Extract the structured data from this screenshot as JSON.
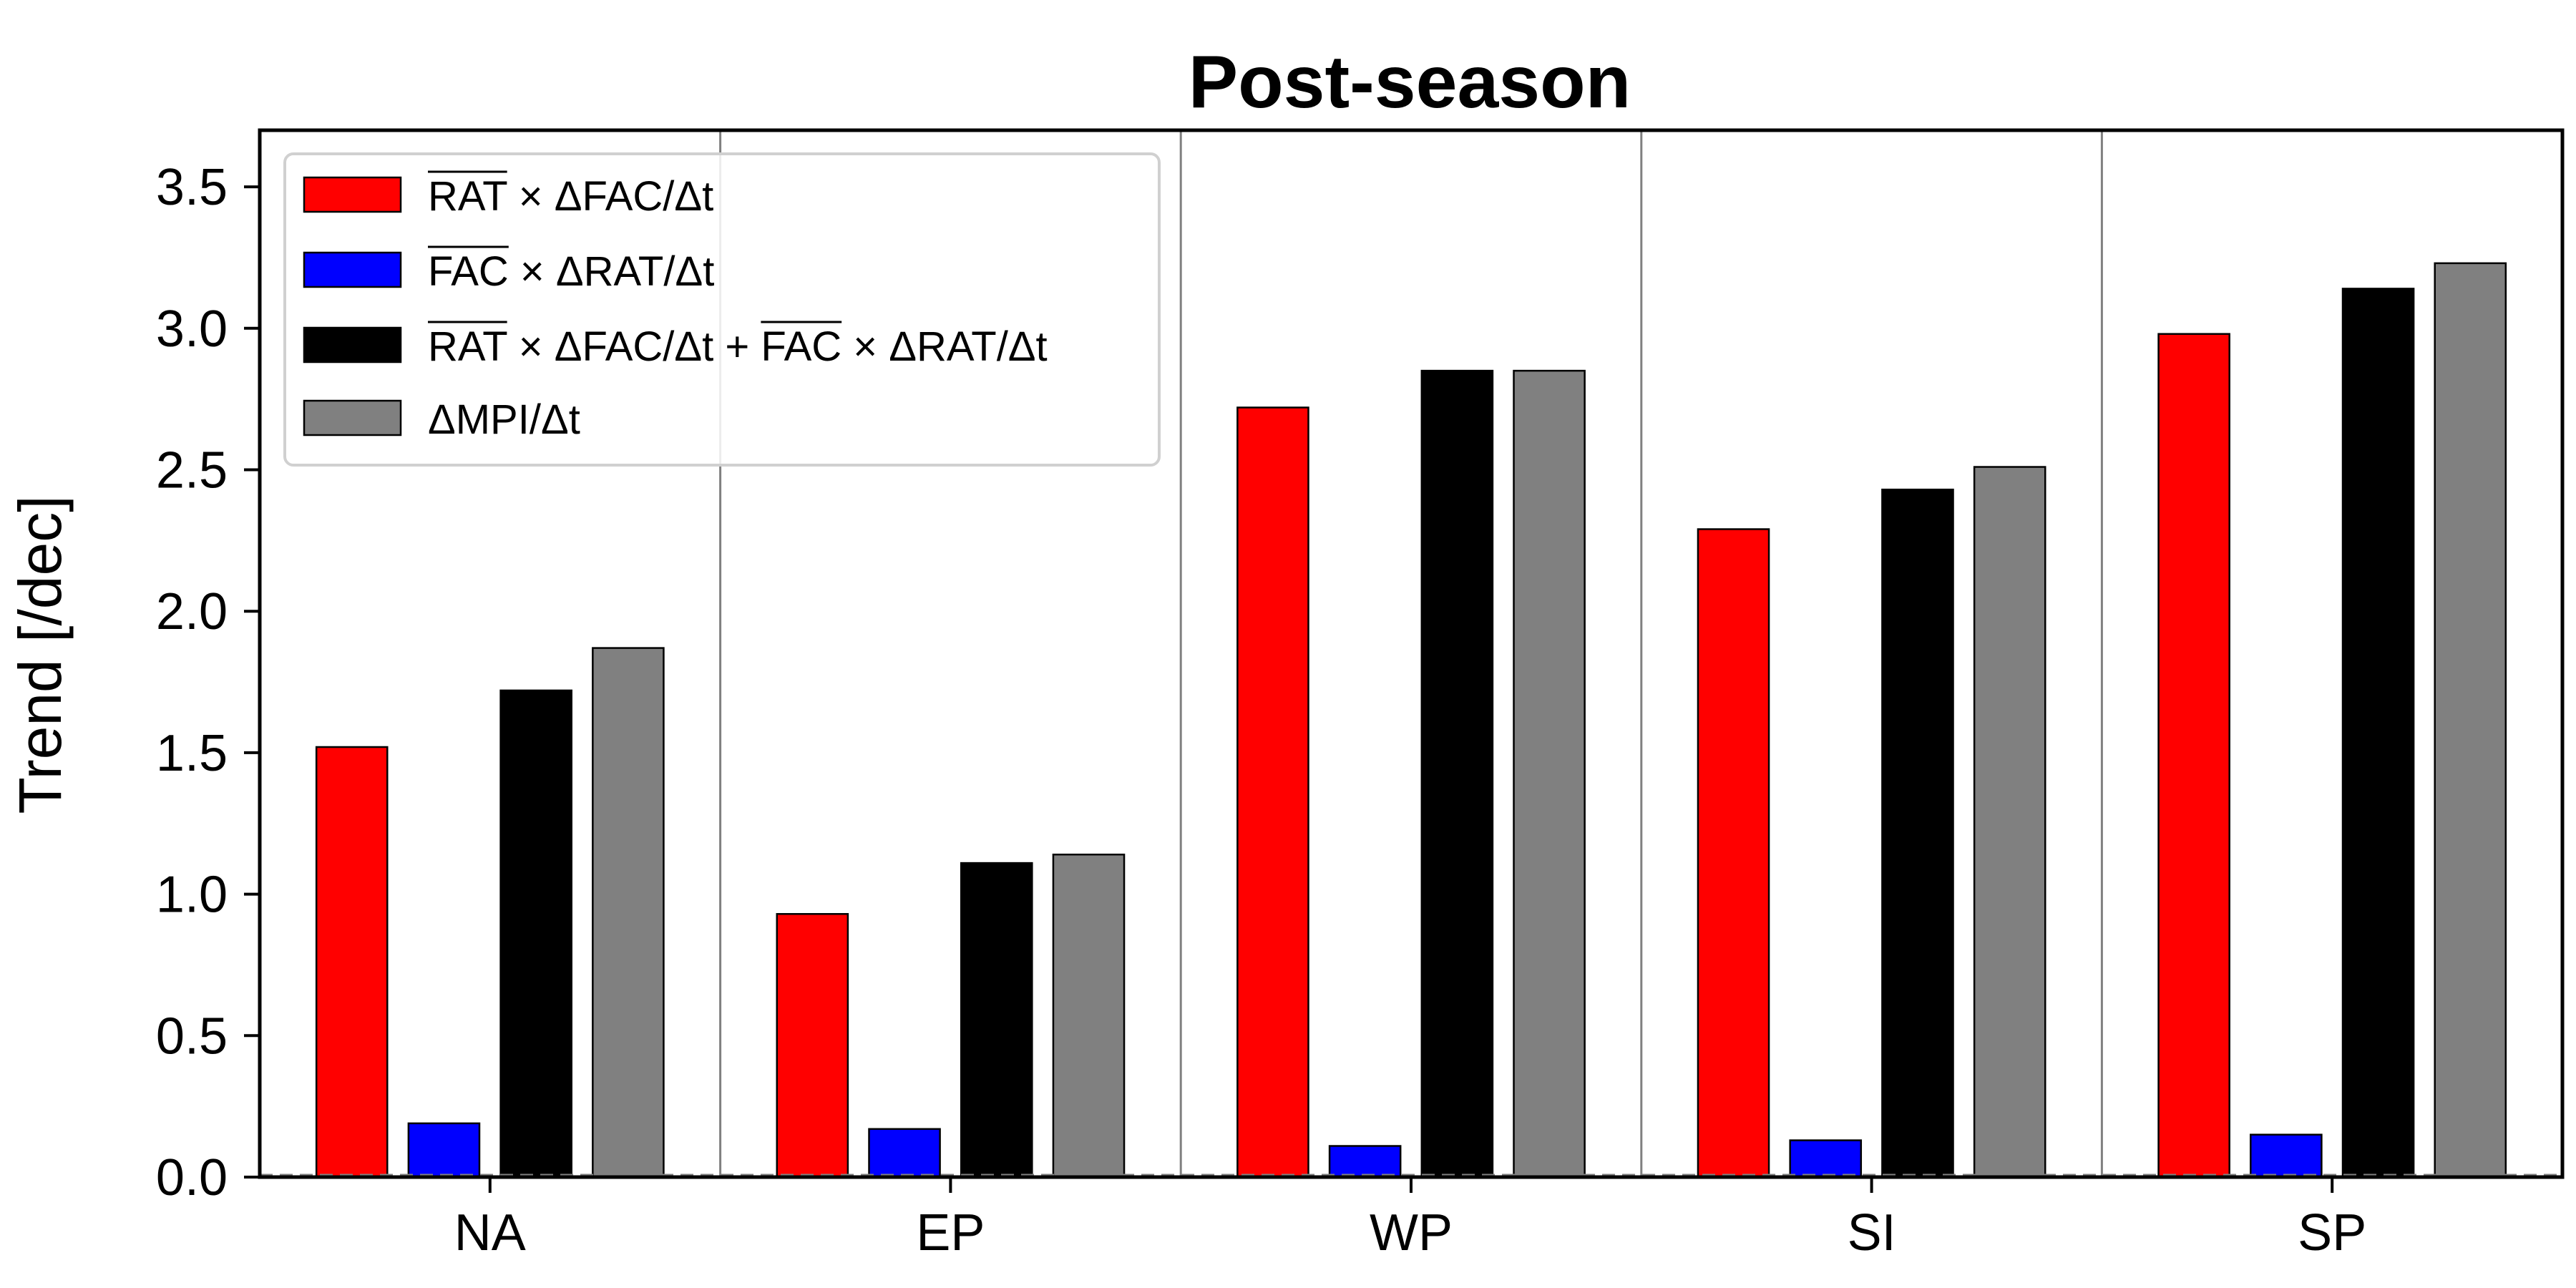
{
  "chart_data": {
    "type": "bar",
    "title": "Post-season",
    "xlabel": "",
    "ylabel": "Trend [/dec]",
    "ylim": [
      0,
      3.7
    ],
    "yticks": [
      "0.0",
      "0.5",
      "1.0",
      "1.5",
      "2.0",
      "2.5",
      "3.0",
      "3.5"
    ],
    "categories": [
      "NA",
      "EP",
      "WP",
      "SI",
      "SP"
    ],
    "grid": false,
    "legend_position": "top-left",
    "series": [
      {
        "name": "RAT × ΔFAC/Δt",
        "color": "#ff0000",
        "values": [
          1.52,
          0.93,
          2.72,
          2.29,
          2.98
        ]
      },
      {
        "name": "FAC × ΔRAT/Δt",
        "color": "#0000ff",
        "values": [
          0.19,
          0.17,
          0.11,
          0.13,
          0.15
        ]
      },
      {
        "name": "RAT × ΔFAC/Δt + FAC × ΔRAT/Δt",
        "color": "#000000",
        "values": [
          1.72,
          1.11,
          2.85,
          2.43,
          3.14
        ]
      },
      {
        "name": "ΔMPI/Δt",
        "color": "#808080",
        "values": [
          1.87,
          1.14,
          2.85,
          2.51,
          3.23
        ]
      }
    ]
  }
}
